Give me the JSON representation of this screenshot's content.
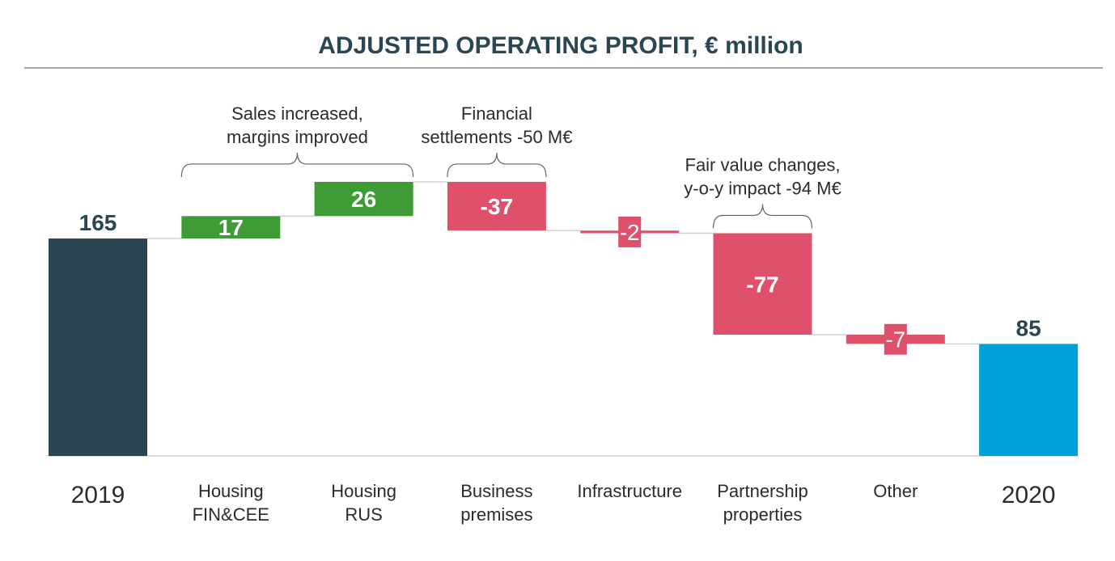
{
  "chart_data": {
    "type": "waterfall",
    "title": "ADJUSTED OPERATING PROFIT, € million",
    "categories": [
      "2019",
      "Housing FIN&CEE",
      "Housing RUS",
      "Business premises",
      "Infrastructure",
      "Partnership properties",
      "Other",
      "2020"
    ],
    "category_lines": [
      [
        "2019"
      ],
      [
        "Housing",
        "FIN&CEE"
      ],
      [
        "Housing",
        "RUS"
      ],
      [
        "Business",
        "premises"
      ],
      [
        "Infrastructure"
      ],
      [
        "Partnership",
        "properties"
      ],
      [
        "Other"
      ],
      [
        "2020"
      ]
    ],
    "values": [
      165,
      17,
      26,
      -37,
      -2,
      -77,
      -7,
      85
    ],
    "labels": [
      "165",
      "17",
      "26",
      "-37",
      "-2",
      "-77",
      "-7",
      "85"
    ],
    "kinds": [
      "total",
      "delta",
      "delta",
      "delta",
      "delta",
      "delta",
      "delta",
      "total"
    ],
    "ylim": [
      0,
      215
    ],
    "colors": {
      "start_total": "#2b4653",
      "end_total": "#00a0d8",
      "increase": "#3e9b35",
      "decrease": "#df516b",
      "title": "#2b4653"
    },
    "annotations": [
      {
        "lines": [
          "Sales increased,",
          "margins improved"
        ],
        "from_category": 1,
        "to_category": 2
      },
      {
        "lines": [
          "Financial",
          "settlements -50 M€"
        ],
        "from_category": 3,
        "to_category": 3
      },
      {
        "lines": [
          "Fair value changes,",
          "y-o-y impact -94 M€"
        ],
        "from_category": 5,
        "to_category": 5
      }
    ]
  }
}
